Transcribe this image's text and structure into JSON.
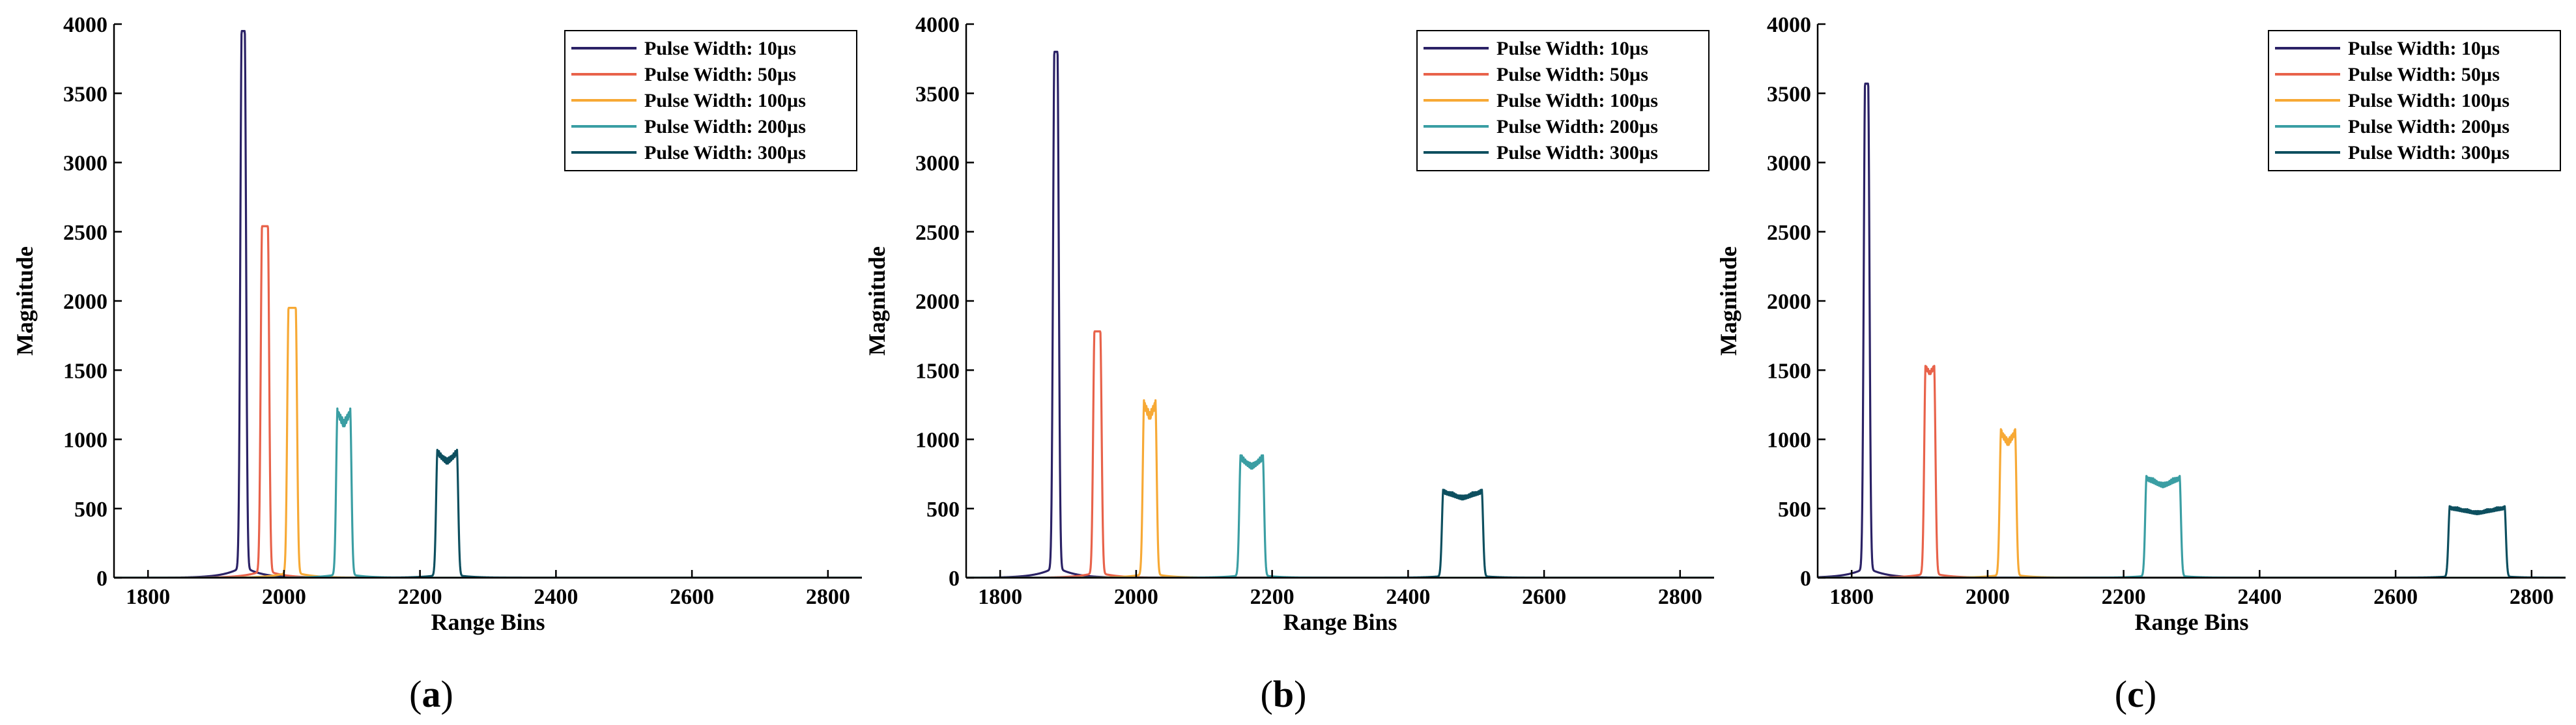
{
  "figure": {
    "panels": [
      {
        "id": "a",
        "label_open": "(",
        "label_letter": "a",
        "label_close": ")"
      },
      {
        "id": "b",
        "label_open": "(",
        "label_letter": "b",
        "label_close": ")"
      },
      {
        "id": "c",
        "label_open": "(",
        "label_letter": "c",
        "label_close": ")"
      }
    ]
  },
  "chart_data": [
    {
      "panel": "a",
      "type": "line",
      "xlabel": "Range Bins",
      "ylabel": "Magnitude",
      "xlim": [
        1750,
        2850
      ],
      "ylim": [
        0,
        4000
      ],
      "xticks": [
        1800,
        2000,
        2200,
        2400,
        2600,
        2800
      ],
      "yticks": [
        0,
        500,
        1000,
        1500,
        2000,
        2500,
        3000,
        3500,
        4000
      ],
      "legend_position": "top-right",
      "series": [
        {
          "name": "Pulse Width: 10µs",
          "color": "#2b2266",
          "center": 1940,
          "peak": 3950,
          "halfwidth": 2,
          "ripple": 0.0
        },
        {
          "name": "Pulse Width: 50µs",
          "color": "#e8624a",
          "center": 1972,
          "peak": 2540,
          "halfwidth": 4,
          "ripple": 0.0
        },
        {
          "name": "Pulse Width: 100µs",
          "color": "#f7a935",
          "center": 2012,
          "peak": 1950,
          "halfwidth": 5,
          "ripple": 0.0
        },
        {
          "name": "Pulse Width: 200µs",
          "color": "#3a9ea3",
          "center": 2088,
          "peak": 1230,
          "halfwidth": 9,
          "ripple": 0.12
        },
        {
          "name": "Pulse Width: 300µs",
          "color": "#0d4f5f",
          "center": 2240,
          "peak": 930,
          "halfwidth": 14,
          "ripple": 0.12
        }
      ]
    },
    {
      "panel": "b",
      "type": "line",
      "xlabel": "Range Bins",
      "ylabel": "Magnitude",
      "xlim": [
        1750,
        2850
      ],
      "ylim": [
        0,
        4000
      ],
      "xticks": [
        1800,
        2000,
        2200,
        2400,
        2600,
        2800
      ],
      "yticks": [
        0,
        500,
        1000,
        1500,
        2000,
        2500,
        3000,
        3500,
        4000
      ],
      "legend_position": "top-right",
      "series": [
        {
          "name": "Pulse Width: 10µs",
          "color": "#2b2266",
          "center": 1882,
          "peak": 3800,
          "halfwidth": 2,
          "ripple": 0.0
        },
        {
          "name": "Pulse Width: 50µs",
          "color": "#e8624a",
          "center": 1943,
          "peak": 1780,
          "halfwidth": 4,
          "ripple": 0.0
        },
        {
          "name": "Pulse Width: 100µs",
          "color": "#f7a935",
          "center": 2020,
          "peak": 1290,
          "halfwidth": 8,
          "ripple": 0.12
        },
        {
          "name": "Pulse Width: 200µs",
          "color": "#3a9ea3",
          "center": 2170,
          "peak": 890,
          "halfwidth": 16,
          "ripple": 0.12
        },
        {
          "name": "Pulse Width: 300µs",
          "color": "#0d4f5f",
          "center": 2480,
          "peak": 640,
          "halfwidth": 28,
          "ripple": 0.12
        }
      ]
    },
    {
      "panel": "c",
      "type": "line",
      "xlabel": "Range Bins",
      "ylabel": "Magnitude",
      "xlim": [
        1750,
        2850
      ],
      "ylim": [
        0,
        4000
      ],
      "xticks": [
        1800,
        2000,
        2200,
        2400,
        2600,
        2800
      ],
      "yticks": [
        0,
        500,
        1000,
        1500,
        2000,
        2500,
        3000,
        3500,
        4000
      ],
      "legend_position": "top-right",
      "series": [
        {
          "name": "Pulse Width: 10µs",
          "color": "#2b2266",
          "center": 1822,
          "peak": 3570,
          "halfwidth": 2,
          "ripple": 0.0
        },
        {
          "name": "Pulse Width: 50µs",
          "color": "#e8624a",
          "center": 1915,
          "peak": 1540,
          "halfwidth": 6,
          "ripple": 0.05
        },
        {
          "name": "Pulse Width: 100µs",
          "color": "#f7a935",
          "center": 2030,
          "peak": 1080,
          "halfwidth": 10,
          "ripple": 0.12
        },
        {
          "name": "Pulse Width: 200µs",
          "color": "#3a9ea3",
          "center": 2258,
          "peak": 740,
          "halfwidth": 24,
          "ripple": 0.12
        },
        {
          "name": "Pulse Width: 300µs",
          "color": "#0d4f5f",
          "center": 2720,
          "peak": 520,
          "halfwidth": 40,
          "ripple": 0.12
        }
      ]
    }
  ]
}
